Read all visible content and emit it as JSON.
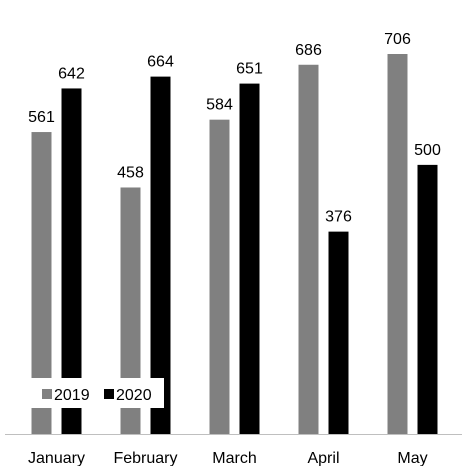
{
  "chart_data": {
    "type": "bar",
    "title": "",
    "xlabel": "",
    "ylabel": "",
    "categories": [
      "January",
      "February",
      "March",
      "April",
      "May"
    ],
    "series": [
      {
        "name": "2019",
        "values": [
          561,
          458,
          584,
          686,
          706
        ],
        "color": "#808080"
      },
      {
        "name": "2020",
        "values": [
          642,
          664,
          651,
          376,
          500
        ],
        "color": "#000000"
      }
    ],
    "ylim": [
      0,
      706
    ],
    "grid": false,
    "data_labels": true,
    "legend": "bottom-left"
  }
}
